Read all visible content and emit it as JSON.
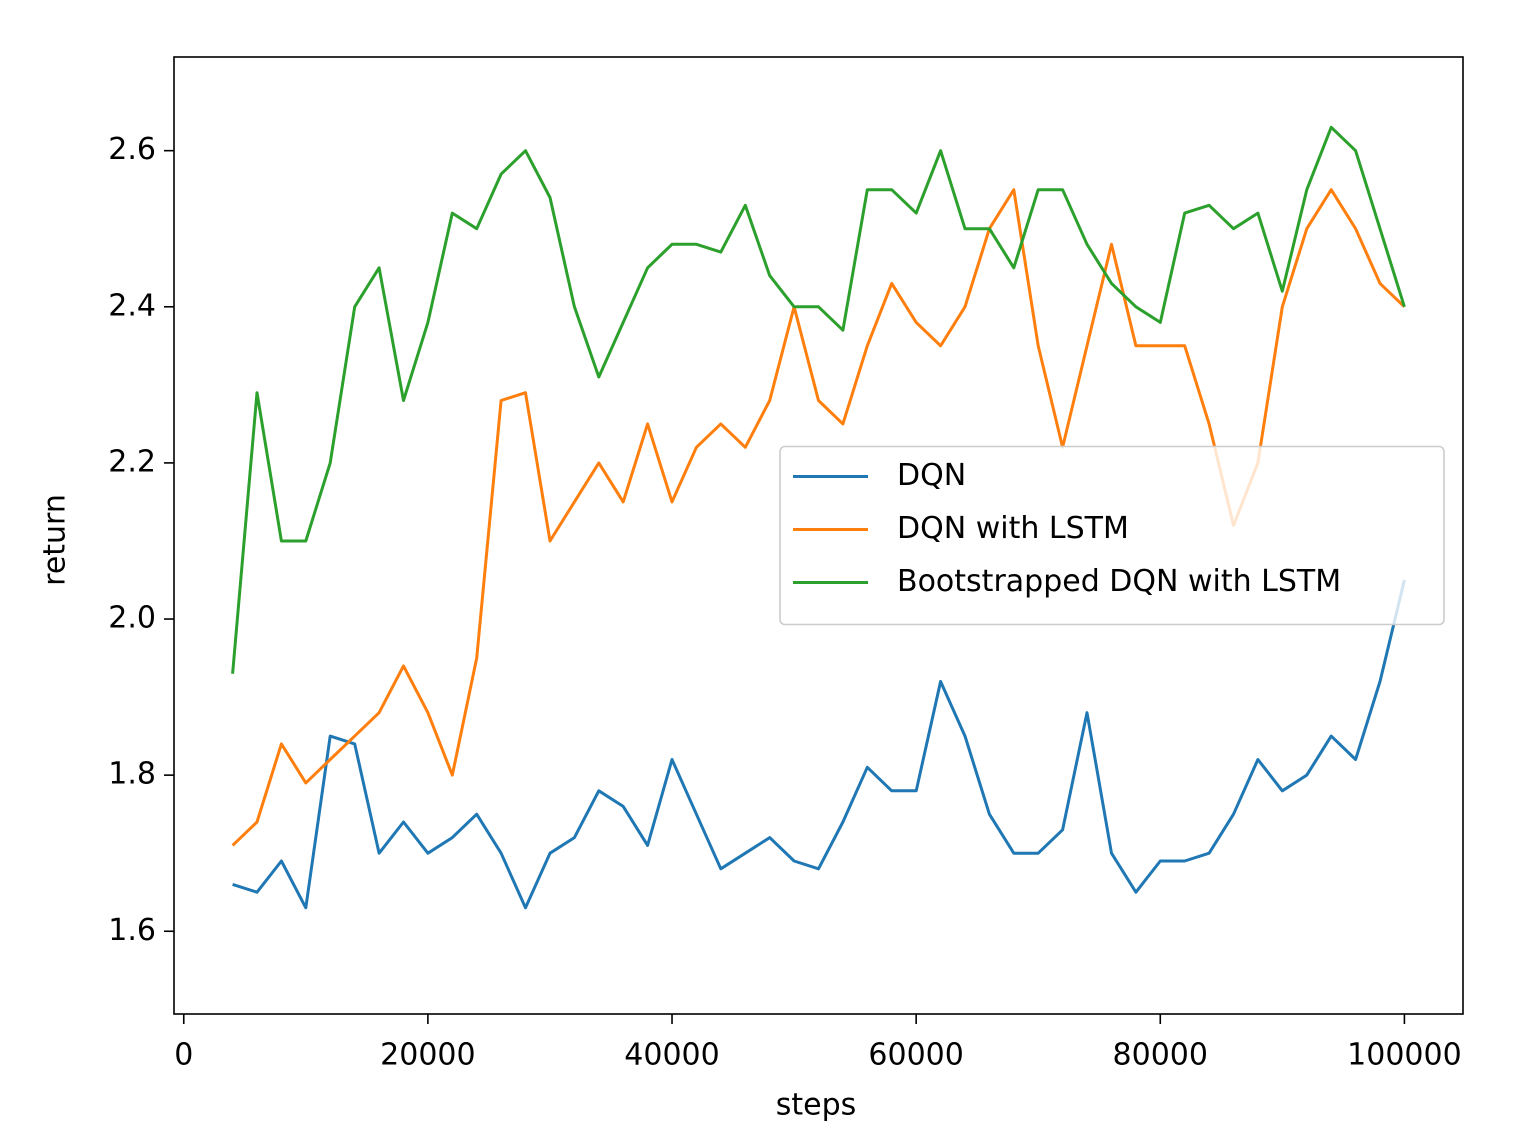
{
  "chart_data": {
    "type": "line",
    "xlabel": "steps",
    "ylabel": "return",
    "x": [
      4000,
      6000,
      8000,
      10000,
      12000,
      14000,
      16000,
      18000,
      20000,
      22000,
      24000,
      26000,
      28000,
      30000,
      32000,
      34000,
      36000,
      38000,
      40000,
      42000,
      44000,
      46000,
      48000,
      50000,
      52000,
      54000,
      56000,
      58000,
      60000,
      62000,
      64000,
      66000,
      68000,
      70000,
      72000,
      74000,
      76000,
      78000,
      80000,
      82000,
      84000,
      86000,
      88000,
      90000,
      92000,
      94000,
      96000,
      98000,
      100000
    ],
    "series": [
      {
        "name": "DQN",
        "color": "#1f77b4",
        "values": [
          1.66,
          1.65,
          1.69,
          1.63,
          1.85,
          1.84,
          1.7,
          1.74,
          1.7,
          1.72,
          1.75,
          1.7,
          1.63,
          1.7,
          1.72,
          1.78,
          1.76,
          1.71,
          1.82,
          1.75,
          1.68,
          1.7,
          1.72,
          1.69,
          1.68,
          1.74,
          1.81,
          1.78,
          1.78,
          1.92,
          1.85,
          1.75,
          1.7,
          1.7,
          1.73,
          1.88,
          1.7,
          1.65,
          1.69,
          1.69,
          1.7,
          1.75,
          1.82,
          1.78,
          1.8,
          1.85,
          1.82,
          1.92,
          2.05
        ]
      },
      {
        "name": "DQN with LSTM",
        "color": "#ff7f0e",
        "values": [
          1.71,
          1.74,
          1.84,
          1.79,
          1.82,
          1.85,
          1.88,
          1.94,
          1.88,
          1.8,
          1.95,
          2.28,
          2.29,
          2.1,
          2.15,
          2.2,
          2.15,
          2.25,
          2.15,
          2.22,
          2.25,
          2.22,
          2.28,
          2.4,
          2.28,
          2.25,
          2.35,
          2.43,
          2.38,
          2.35,
          2.4,
          2.5,
          2.55,
          2.35,
          2.22,
          2.35,
          2.48,
          2.35,
          2.35,
          2.35,
          2.25,
          2.12,
          2.2,
          2.4,
          2.5,
          2.55,
          2.5,
          2.43,
          2.4
        ]
      },
      {
        "name": "Bootstrapped DQN with LSTM",
        "color": "#2ca02c",
        "values": [
          1.93,
          2.29,
          2.1,
          2.1,
          2.2,
          2.4,
          2.45,
          2.28,
          2.38,
          2.52,
          2.5,
          2.57,
          2.6,
          2.54,
          2.4,
          2.31,
          2.38,
          2.45,
          2.48,
          2.48,
          2.47,
          2.53,
          2.44,
          2.4,
          2.4,
          2.37,
          2.55,
          2.55,
          2.52,
          2.6,
          2.5,
          2.5,
          2.45,
          2.55,
          2.55,
          2.48,
          2.43,
          2.4,
          2.38,
          2.52,
          2.53,
          2.5,
          2.52,
          2.42,
          2.55,
          2.63,
          2.6,
          2.5,
          2.4
        ]
      }
    ],
    "xlim": [
      -800,
      104800
    ],
    "xticks": [
      0,
      20000,
      40000,
      60000,
      80000,
      100000
    ],
    "ylim": [
      1.494,
      2.72
    ],
    "yticks": [
      1.6,
      1.8,
      {
        "value": 2,
        "label": "2.0"
      },
      2.2,
      2.4,
      2.6
    ],
    "grid": false,
    "legend": "center right"
  }
}
